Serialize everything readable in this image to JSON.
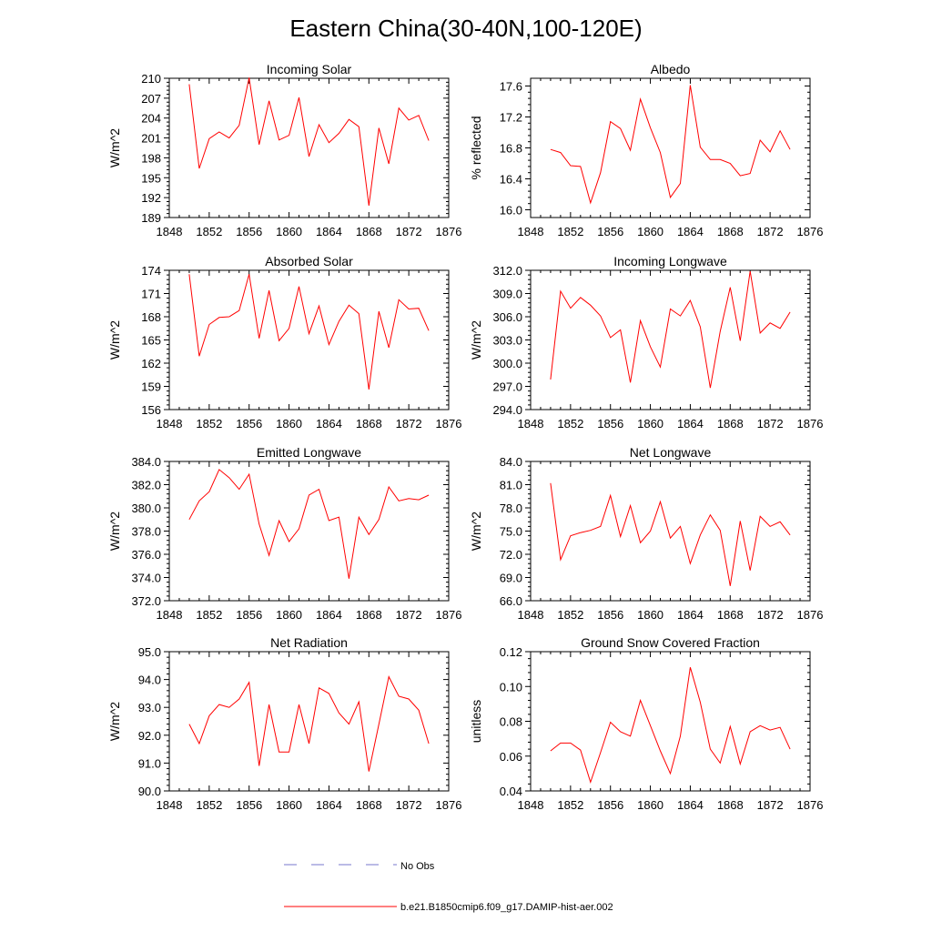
{
  "figure": {
    "title": "Eastern China(30-40N,100-120E)",
    "legend": [
      {
        "label": "No Obs",
        "color": "#7777cc",
        "style": "dashed"
      },
      {
        "label": "b.e21.B1850cmip6.f09_g17.DAMIP-hist-aer.002",
        "color": "#ff0000",
        "style": "solid"
      }
    ]
  },
  "chart_data": [
    {
      "type": "line",
      "title": "Incoming Solar",
      "ylabel": "W/m^2",
      "xlim": [
        1848,
        1876
      ],
      "ylim": [
        189,
        210
      ],
      "x_ticks": [
        1848,
        1852,
        1856,
        1860,
        1864,
        1868,
        1872,
        1876
      ],
      "y_ticks": [
        189,
        192,
        195,
        198,
        201,
        204,
        207,
        210
      ],
      "y_tick_labels": [
        "189",
        "192",
        "195",
        "198",
        "201",
        "204",
        "207",
        "210"
      ],
      "color": "#ff0000",
      "x": [
        1850,
        1851,
        1852,
        1853,
        1854,
        1855,
        1856,
        1857,
        1858,
        1859,
        1860,
        1861,
        1862,
        1863,
        1864,
        1865,
        1866,
        1867,
        1868,
        1869,
        1870,
        1871,
        1872,
        1873,
        1874
      ],
      "values": [
        209.1,
        196.4,
        200.9,
        201.9,
        201.0,
        202.9,
        210.1,
        200.0,
        206.6,
        200.7,
        201.4,
        207.1,
        198.2,
        203.0,
        200.3,
        201.7,
        203.8,
        202.7,
        190.8,
        202.5,
        197.1,
        205.5,
        203.7,
        204.4,
        200.6
      ]
    },
    {
      "type": "line",
      "title": "Albedo",
      "ylabel": "% reflected",
      "xlim": [
        1848,
        1876
      ],
      "ylim": [
        15.9,
        17.7
      ],
      "x_ticks": [
        1848,
        1852,
        1856,
        1860,
        1864,
        1868,
        1872,
        1876
      ],
      "y_ticks": [
        16.0,
        16.4,
        16.8,
        17.2,
        17.6
      ],
      "y_tick_labels": [
        "16.0",
        "16.4",
        "16.8",
        "17.2",
        "17.6"
      ],
      "color": "#ff0000",
      "x": [
        1850,
        1851,
        1852,
        1853,
        1854,
        1855,
        1856,
        1857,
        1858,
        1859,
        1860,
        1861,
        1862,
        1863,
        1864,
        1865,
        1866,
        1867,
        1868,
        1869,
        1870,
        1871,
        1872,
        1873,
        1874
      ],
      "values": [
        16.78,
        16.74,
        16.57,
        16.56,
        16.09,
        16.48,
        17.14,
        17.05,
        16.77,
        17.43,
        17.06,
        16.74,
        16.16,
        16.34,
        17.61,
        16.81,
        16.65,
        16.65,
        16.6,
        16.44,
        16.47,
        16.9,
        16.75,
        17.02,
        16.78
      ]
    },
    {
      "type": "line",
      "title": "Absorbed Solar",
      "ylabel": "W/m^2",
      "xlim": [
        1848,
        1876
      ],
      "ylim": [
        156,
        174
      ],
      "x_ticks": [
        1848,
        1852,
        1856,
        1860,
        1864,
        1868,
        1872,
        1876
      ],
      "y_ticks": [
        156,
        159,
        162,
        165,
        168,
        171,
        174
      ],
      "y_tick_labels": [
        "156",
        "159",
        "162",
        "165",
        "168",
        "171",
        "174"
      ],
      "color": "#ff0000",
      "x": [
        1850,
        1851,
        1852,
        1853,
        1854,
        1855,
        1856,
        1857,
        1858,
        1859,
        1860,
        1861,
        1862,
        1863,
        1864,
        1865,
        1866,
        1867,
        1868,
        1869,
        1870,
        1871,
        1872,
        1873,
        1874
      ],
      "values": [
        173.5,
        162.9,
        167.0,
        167.9,
        168.0,
        168.8,
        173.5,
        165.2,
        171.4,
        164.9,
        166.5,
        171.9,
        165.8,
        169.4,
        164.4,
        167.4,
        169.5,
        168.4,
        158.6,
        168.7,
        164.0,
        170.2,
        169.0,
        169.1,
        166.2
      ]
    },
    {
      "type": "line",
      "title": "Incoming Longwave",
      "ylabel": "W/m^2",
      "xlim": [
        1848,
        1876
      ],
      "ylim": [
        294,
        312
      ],
      "x_ticks": [
        1848,
        1852,
        1856,
        1860,
        1864,
        1868,
        1872,
        1876
      ],
      "y_ticks": [
        294,
        297,
        300,
        303,
        306,
        309,
        312
      ],
      "y_tick_labels": [
        "294.0",
        "297.0",
        "300.0",
        "303.0",
        "306.0",
        "309.0",
        "312.0"
      ],
      "color": "#ff0000",
      "x": [
        1850,
        1851,
        1852,
        1853,
        1854,
        1855,
        1856,
        1857,
        1858,
        1859,
        1860,
        1861,
        1862,
        1863,
        1864,
        1865,
        1866,
        1867,
        1868,
        1869,
        1870,
        1871,
        1872,
        1873,
        1874
      ],
      "values": [
        297.9,
        309.3,
        307.1,
        308.5,
        307.5,
        306.1,
        303.3,
        304.3,
        297.5,
        305.5,
        302.1,
        299.5,
        307.0,
        306.1,
        308.1,
        304.7,
        296.8,
        304.1,
        309.8,
        302.9,
        311.9,
        303.9,
        305.2,
        304.5,
        306.6
      ]
    },
    {
      "type": "line",
      "title": "Emitted Longwave",
      "ylabel": "W/m^2",
      "xlim": [
        1848,
        1876
      ],
      "ylim": [
        372,
        384
      ],
      "x_ticks": [
        1848,
        1852,
        1856,
        1860,
        1864,
        1868,
        1872,
        1876
      ],
      "y_ticks": [
        372,
        374,
        376,
        378,
        380,
        382,
        384
      ],
      "y_tick_labels": [
        "372.0",
        "374.0",
        "376.0",
        "378.0",
        "380.0",
        "382.0",
        "384.0"
      ],
      "color": "#ff0000",
      "x": [
        1850,
        1851,
        1852,
        1853,
        1854,
        1855,
        1856,
        1857,
        1858,
        1859,
        1860,
        1861,
        1862,
        1863,
        1864,
        1865,
        1866,
        1867,
        1868,
        1869,
        1870,
        1871,
        1872,
        1873,
        1874
      ],
      "values": [
        379.0,
        380.6,
        381.4,
        383.3,
        382.6,
        381.6,
        382.9,
        378.6,
        375.9,
        378.9,
        377.1,
        378.2,
        381.1,
        381.6,
        378.9,
        379.2,
        373.9,
        379.2,
        377.7,
        379.0,
        381.8,
        380.6,
        380.8,
        380.7,
        381.1
      ]
    },
    {
      "type": "line",
      "title": "Net Longwave",
      "ylabel": "W/m^2",
      "xlim": [
        1848,
        1876
      ],
      "ylim": [
        66,
        84
      ],
      "x_ticks": [
        1848,
        1852,
        1856,
        1860,
        1864,
        1868,
        1872,
        1876
      ],
      "y_ticks": [
        66,
        69,
        72,
        75,
        78,
        81,
        84
      ],
      "y_tick_labels": [
        "66.0",
        "69.0",
        "72.0",
        "75.0",
        "78.0",
        "81.0",
        "84.0"
      ],
      "color": "#ff0000",
      "x": [
        1850,
        1851,
        1852,
        1853,
        1854,
        1855,
        1856,
        1857,
        1858,
        1859,
        1860,
        1861,
        1862,
        1863,
        1864,
        1865,
        1866,
        1867,
        1868,
        1869,
        1870,
        1871,
        1872,
        1873,
        1874
      ],
      "values": [
        81.2,
        71.3,
        74.4,
        74.8,
        75.1,
        75.6,
        79.6,
        74.3,
        78.3,
        73.5,
        75.0,
        78.8,
        74.1,
        75.6,
        70.8,
        74.5,
        77.1,
        75.1,
        67.9,
        76.3,
        69.9,
        76.9,
        75.6,
        76.2,
        74.5
      ]
    },
    {
      "type": "line",
      "title": "Net Radiation",
      "ylabel": "W/m^2",
      "xlim": [
        1848,
        1876
      ],
      "ylim": [
        90,
        95
      ],
      "x_ticks": [
        1848,
        1852,
        1856,
        1860,
        1864,
        1868,
        1872,
        1876
      ],
      "y_ticks": [
        90,
        91,
        92,
        93,
        94,
        95
      ],
      "y_tick_labels": [
        "90.0",
        "91.0",
        "92.0",
        "93.0",
        "94.0",
        "95.0"
      ],
      "color": "#ff0000",
      "x": [
        1850,
        1851,
        1852,
        1853,
        1854,
        1855,
        1856,
        1857,
        1858,
        1859,
        1860,
        1861,
        1862,
        1863,
        1864,
        1865,
        1866,
        1867,
        1868,
        1869,
        1870,
        1871,
        1872,
        1873,
        1874
      ],
      "values": [
        92.4,
        91.7,
        92.7,
        93.1,
        93.0,
        93.3,
        93.9,
        90.9,
        93.1,
        91.4,
        91.4,
        93.1,
        91.7,
        93.7,
        93.5,
        92.8,
        92.4,
        93.2,
        90.7,
        92.4,
        94.1,
        93.4,
        93.3,
        92.9,
        91.7
      ]
    },
    {
      "type": "line",
      "title": "Ground Snow Covered Fraction",
      "ylabel": "unitless",
      "xlim": [
        1848,
        1876
      ],
      "ylim": [
        0.04,
        0.12
      ],
      "x_ticks": [
        1848,
        1852,
        1856,
        1860,
        1864,
        1868,
        1872,
        1876
      ],
      "y_ticks": [
        0.04,
        0.06,
        0.08,
        0.1,
        0.12
      ],
      "y_tick_labels": [
        "0.04",
        "0.06",
        "0.08",
        "0.10",
        "0.12"
      ],
      "color": "#ff0000",
      "x": [
        1850,
        1851,
        1852,
        1853,
        1854,
        1855,
        1856,
        1857,
        1858,
        1859,
        1860,
        1861,
        1862,
        1863,
        1864,
        1865,
        1866,
        1867,
        1868,
        1869,
        1870,
        1871,
        1872,
        1873,
        1874
      ],
      "values": [
        0.063,
        0.0675,
        0.0675,
        0.0635,
        0.045,
        0.062,
        0.0795,
        0.074,
        0.0715,
        0.092,
        0.0775,
        0.063,
        0.05,
        0.0715,
        0.111,
        0.091,
        0.064,
        0.056,
        0.077,
        0.0555,
        0.074,
        0.0775,
        0.075,
        0.0765,
        0.064
      ]
    }
  ]
}
